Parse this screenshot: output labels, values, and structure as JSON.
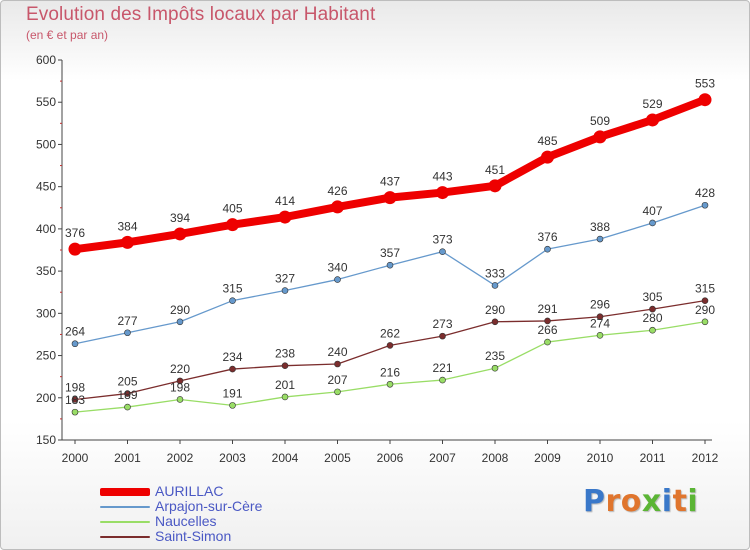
{
  "header": {
    "title": "Evolution des Impôts locaux par Habitant",
    "subtitle": "(en € et par an)"
  },
  "logo": {
    "text": "Proxiti"
  },
  "chart_data": {
    "type": "line",
    "title": "Evolution des Impôts locaux par Habitant",
    "subtitle": "(en € et par an)",
    "x": [
      "2000",
      "2001",
      "2002",
      "2003",
      "2004",
      "2005",
      "2006",
      "2007",
      "2008",
      "2009",
      "2010",
      "2011",
      "2012"
    ],
    "ylim": [
      150,
      600
    ],
    "yticks": [
      150,
      200,
      250,
      300,
      350,
      400,
      450,
      500,
      550,
      600
    ],
    "grid": false,
    "legend_position": "bottom-left",
    "series": [
      {
        "name": "AURILLAC",
        "color": "#ee0000",
        "values": [
          376,
          384,
          394,
          405,
          414,
          426,
          437,
          443,
          451,
          485,
          509,
          529,
          553
        ]
      },
      {
        "name": "Arpajon-sur-Cère",
        "color": "#6699cc",
        "values": [
          264,
          277,
          290,
          315,
          327,
          340,
          357,
          373,
          333,
          376,
          388,
          407,
          428
        ]
      },
      {
        "name": "Naucelles",
        "color": "#99dd66",
        "values": [
          183,
          189,
          198,
          191,
          201,
          207,
          216,
          221,
          235,
          266,
          274,
          280,
          290
        ]
      },
      {
        "name": "Saint-Simon",
        "color": "#7b2d2d",
        "values": [
          198,
          205,
          220,
          234,
          238,
          240,
          262,
          273,
          290,
          291,
          296,
          305,
          315
        ]
      }
    ]
  }
}
